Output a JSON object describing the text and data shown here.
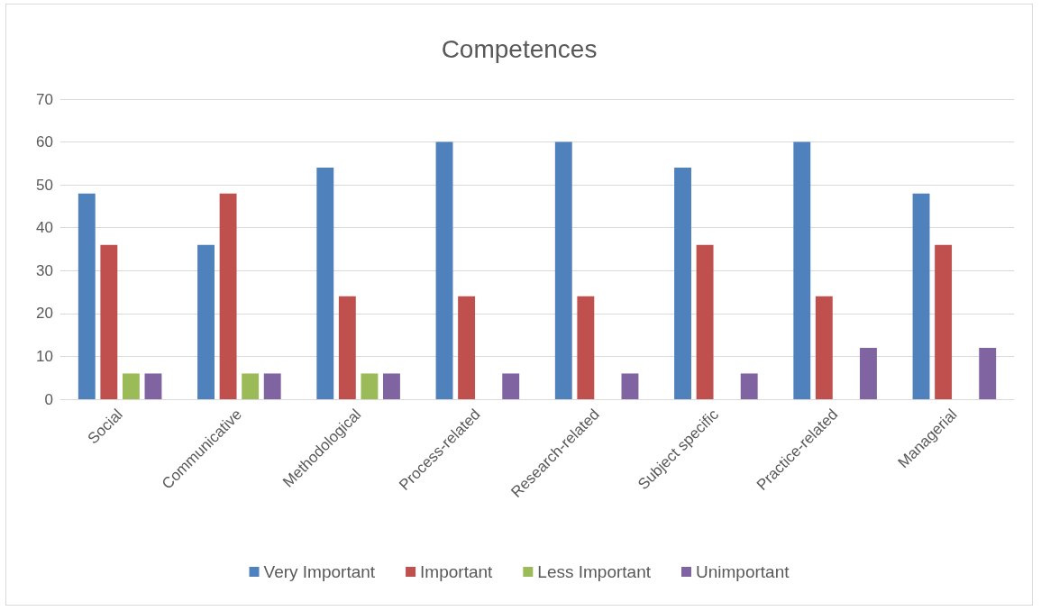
{
  "chart_data": {
    "type": "bar",
    "title": "Competences",
    "categories": [
      "Social",
      "Communicative",
      "Methodological",
      "Process-related",
      "Research-related",
      "Subject specific",
      "Practice-related",
      "Managerial"
    ],
    "series": [
      {
        "name": "Very Important",
        "color": "#4f81bd",
        "values": [
          48,
          36,
          54,
          60,
          60,
          54,
          60,
          48
        ]
      },
      {
        "name": "Important",
        "color": "#c0504d",
        "values": [
          36,
          48,
          24,
          24,
          24,
          36,
          24,
          36
        ]
      },
      {
        "name": "Less Important",
        "color": "#9bbb59",
        "values": [
          6,
          6,
          6,
          null,
          null,
          null,
          null,
          null
        ]
      },
      {
        "name": "Unimportant",
        "color": "#8064a2",
        "values": [
          6,
          6,
          6,
          6,
          6,
          6,
          12,
          12
        ]
      }
    ],
    "ylim": [
      0,
      70
    ],
    "yticks": [
      0,
      10,
      20,
      30,
      40,
      50,
      60,
      70
    ],
    "grid": "y",
    "legend": "bottom"
  }
}
